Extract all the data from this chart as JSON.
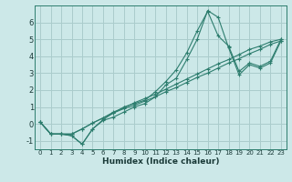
{
  "xlabel": "Humidex (Indice chaleur)",
  "ylabel": "",
  "background_color": "#cce8e8",
  "grid_color": "#aacccc",
  "line_color": "#2d7d6e",
  "xlim": [
    -0.5,
    23.5
  ],
  "ylim": [
    -1.5,
    7.0
  ],
  "xticks": [
    0,
    1,
    2,
    3,
    4,
    5,
    6,
    7,
    8,
    9,
    10,
    11,
    12,
    13,
    14,
    15,
    16,
    17,
    18,
    19,
    20,
    21,
    22,
    23
  ],
  "yticks": [
    -1,
    0,
    1,
    2,
    3,
    4,
    5,
    6
  ],
  "lines": [
    {
      "x": [
        0,
        1,
        2,
        3,
        4,
        5,
        6,
        7,
        8,
        9,
        10,
        11,
        12,
        13,
        14,
        15,
        16,
        17,
        18,
        19,
        20,
        21,
        22,
        23
      ],
      "y": [
        0.1,
        -0.6,
        -0.6,
        -0.7,
        -1.2,
        -0.3,
        0.2,
        0.4,
        0.7,
        1.0,
        1.2,
        1.6,
        2.3,
        2.7,
        3.8,
        5.0,
        6.7,
        6.3,
        4.5,
        2.9,
        3.5,
        3.3,
        3.6,
        4.9
      ]
    },
    {
      "x": [
        0,
        1,
        2,
        3,
        4,
        5,
        6,
        7,
        8,
        9,
        10,
        11,
        12,
        13,
        14,
        15,
        16,
        17,
        18,
        19,
        20,
        21,
        22,
        23
      ],
      "y": [
        0.1,
        -0.6,
        -0.6,
        -0.7,
        -1.2,
        -0.3,
        0.25,
        0.65,
        1.0,
        1.2,
        1.4,
        1.9,
        2.5,
        3.2,
        4.2,
        5.5,
        6.65,
        5.2,
        4.6,
        3.1,
        3.6,
        3.4,
        3.7,
        5.0
      ]
    },
    {
      "x": [
        0,
        1,
        2,
        3,
        4,
        5,
        6,
        7,
        8,
        9,
        10,
        11,
        12,
        13,
        14,
        15,
        16,
        17,
        18,
        19,
        20,
        21,
        22,
        23
      ],
      "y": [
        0.1,
        -0.6,
        -0.6,
        -0.6,
        -0.3,
        0.05,
        0.35,
        0.7,
        0.95,
        1.25,
        1.5,
        1.75,
        2.05,
        2.35,
        2.65,
        2.95,
        3.25,
        3.55,
        3.8,
        4.1,
        4.4,
        4.6,
        4.85,
        5.0
      ]
    },
    {
      "x": [
        0,
        1,
        2,
        3,
        4,
        5,
        6,
        7,
        8,
        9,
        10,
        11,
        12,
        13,
        14,
        15,
        16,
        17,
        18,
        19,
        20,
        21,
        22,
        23
      ],
      "y": [
        0.1,
        -0.6,
        -0.6,
        -0.6,
        -0.3,
        0.05,
        0.35,
        0.65,
        0.9,
        1.1,
        1.35,
        1.6,
        1.9,
        2.15,
        2.45,
        2.75,
        3.0,
        3.3,
        3.6,
        3.85,
        4.15,
        4.4,
        4.7,
        4.9
      ]
    }
  ]
}
